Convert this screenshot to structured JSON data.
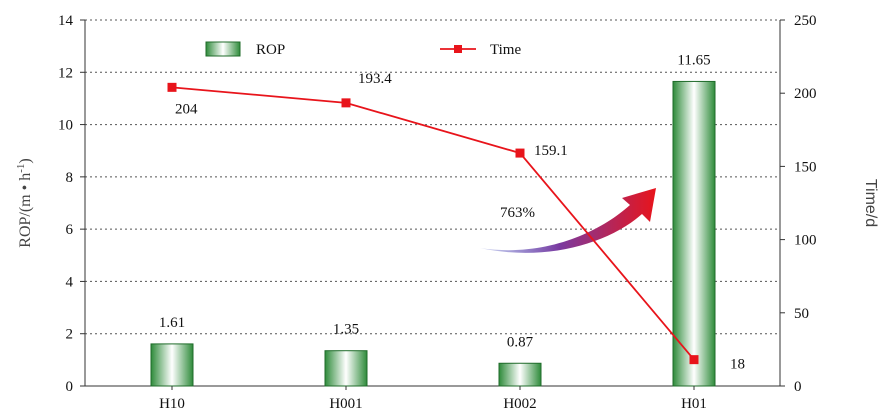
{
  "chart_data": {
    "type": "bar",
    "categories": [
      "H10",
      "H001",
      "H002",
      "H01"
    ],
    "series": [
      {
        "name": "ROP",
        "type": "bar",
        "axis": "left",
        "values": [
          1.61,
          1.35,
          0.87,
          11.65
        ],
        "labels": [
          "1.61",
          "1.35",
          "0.87",
          "11.65"
        ]
      },
      {
        "name": "Time",
        "type": "line",
        "axis": "right",
        "values": [
          204,
          193.4,
          159.1,
          18
        ],
        "labels": [
          "204",
          "193.4",
          "159.1",
          "18"
        ]
      }
    ],
    "ylabel_left_main": "ROP/(m • h",
    "ylabel_left_sup": "-1",
    "ylabel_left_tail": ")",
    "ylabel_right": "Time/d",
    "ylim_left": [
      0,
      14
    ],
    "ylim_right": [
      0,
      250
    ],
    "yticks_left": [
      0,
      2,
      4,
      6,
      8,
      10,
      12,
      14
    ],
    "yticks_right": [
      0,
      50,
      100,
      150,
      200,
      250
    ],
    "grid": "horizontal dotted",
    "legend_position": "top",
    "annotation": "763%",
    "colors": {
      "bar_edge": "#1f6b2a",
      "bar_fill_dark": "#2e8b3a",
      "bar_fill_light": "#ffffff",
      "line": "#e8141b",
      "arrow_start": "#3a4bbf",
      "arrow_end": "#e8141b"
    }
  }
}
